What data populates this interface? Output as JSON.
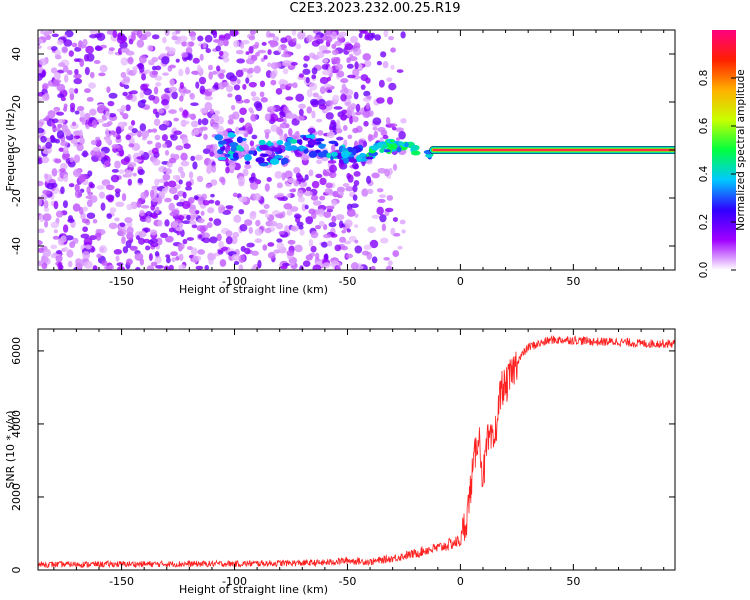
{
  "title": "C2E3.2023.232.00.25.R19",
  "chart_data": [
    {
      "type": "heatmap",
      "xlabel": "Height of straight line (km)",
      "ylabel": "Frequency (Hz)",
      "xlim": [
        -187,
        95
      ],
      "ylim": [
        -50,
        50
      ],
      "xticks": [
        -150,
        -100,
        -50,
        0,
        50
      ],
      "yticks": [
        -40,
        -20,
        0,
        20,
        40
      ],
      "grid": false,
      "colorbar": {
        "label": "Normalized spectral amplitude",
        "range": [
          0,
          1
        ],
        "ticks": [
          0.0,
          0.2,
          0.4,
          0.6,
          0.8
        ],
        "colormap": [
          "#ffffff",
          "#a000ff",
          "#3000ff",
          "#00c8ff",
          "#00ff40",
          "#c8ff00",
          "#ffb000",
          "#ff2000",
          "#ff0080"
        ]
      },
      "features": {
        "noise_region_x": [
          -187,
          -30
        ],
        "noise_dots_amplitude": 0.15,
        "signal_line": {
          "y": 0,
          "x_start": -12,
          "x_end": 95,
          "amplitude": 1.0
        },
        "transition_region_x": [
          -107,
          -12
        ]
      }
    },
    {
      "type": "line",
      "xlabel": "Height of straight line (km)",
      "ylabel": "SNR (10 * v/v)",
      "xlim": [
        -187,
        95
      ],
      "ylim": [
        0,
        6600
      ],
      "xticks": [
        -150,
        -100,
        -50,
        0,
        50
      ],
      "yticks": [
        0,
        2000,
        4000,
        6000
      ],
      "grid": false,
      "series": [
        {
          "color": "#ff2020",
          "x": [
            -187,
            -150,
            -100,
            -60,
            -50,
            -40,
            -30,
            -20,
            -15,
            -10,
            -5,
            0,
            3,
            5,
            8,
            10,
            12,
            15,
            18,
            20,
            25,
            30,
            35,
            40,
            50,
            60,
            70,
            80,
            90,
            95
          ],
          "y": [
            150,
            160,
            170,
            200,
            260,
            220,
            320,
            450,
            550,
            600,
            700,
            800,
            1500,
            2500,
            3800,
            2500,
            3500,
            3500,
            5000,
            5000,
            5700,
            6100,
            6200,
            6300,
            6300,
            6250,
            6250,
            6200,
            6200,
            6200
          ]
        }
      ]
    }
  ]
}
